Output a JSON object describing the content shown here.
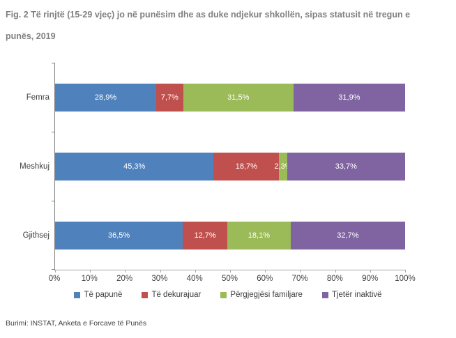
{
  "title": "Fig. 2 Të rinjtë (15-29 vjeç) jo në punësim dhe as duke ndjekur shkollën, sipas statusit në tregun e punës, 2019",
  "source": "Burimi: INSTAT, Anketa e Forcave të Punës",
  "colors": {
    "title_gray": "#808080",
    "axis_line": "#a6a6a6",
    "label_text": "#404040",
    "bar_label": "#ffffff"
  },
  "chart_data": {
    "type": "bar",
    "orientation": "horizontal",
    "stacked": true,
    "stacked_to_100": true,
    "title": "Fig. 2 Të rinjtë (15-29 vjeç) jo në punësim dhe as duke ndjekur shkollën, sipas statusit në tregun e punës, 2019",
    "categories": [
      "Femra",
      "Meshkuj",
      "Gjithsej"
    ],
    "series": [
      {
        "name": "Të papunë",
        "color": "#4F81BD",
        "values": [
          28.9,
          45.3,
          36.5
        ]
      },
      {
        "name": "Të dekurajuar",
        "color": "#C0504D",
        "values": [
          7.7,
          18.7,
          12.7
        ]
      },
      {
        "name": "Përgjegjësi familjare",
        "color": "#9BBB59",
        "values": [
          31.5,
          2.3,
          18.1
        ]
      },
      {
        "name": "Tjetër inaktivë",
        "color": "#8064A2",
        "values": [
          31.9,
          33.7,
          32.7
        ]
      }
    ],
    "data_labels": [
      [
        "28,9%",
        "7,7%",
        "31,5%",
        "31,9%"
      ],
      [
        "45,3%",
        "18,7%",
        "2,3%",
        "33,7%"
      ],
      [
        "36,5%",
        "12,7%",
        "18,1%",
        "32,7%"
      ]
    ],
    "x_ticks": [
      "0%",
      "10%",
      "20%",
      "30%",
      "40%",
      "50%",
      "60%",
      "70%",
      "80%",
      "90%",
      "100%"
    ],
    "xlim": [
      0,
      100
    ],
    "grid": false,
    "legend_position": "bottom"
  }
}
